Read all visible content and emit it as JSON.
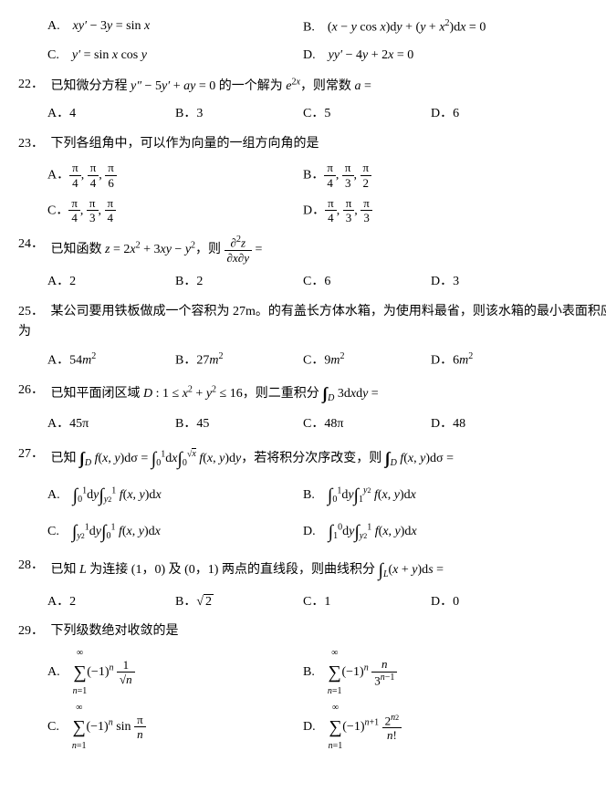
{
  "q21_opts": {
    "A": "A.　<span class='math'>xy′</span> − 3<span class='math'>y</span> = sin <span class='math'>x</span>",
    "B": "B.　(<span class='math'>x</span> − <span class='math'>y</span> cos <span class='math'>x</span>)d<span class='math'>y</span> + (<span class='math'>y</span> + <span class='math'>x</span><span class='sup'>2</span>)d<span class='math'>x</span> = 0",
    "C": "C.　<span class='math'>y′</span> = sin <span class='math'>x</span> cos <span class='math'>y</span>",
    "D": "D.　<span class='math'>yy′</span> − 4<span class='math'>y</span> + 2<span class='math'>x</span> = 0"
  },
  "q22": {
    "num": "22．",
    "text": "已知微分方程 <span class='math'>y″</span> − 5<span class='math'>y′</span> + <span class='math'>ay</span> = 0 的一个解为 <span class='math'>e</span><span class='sup'>2<span class='math'>x</span></span>，则常数 <span class='math'>a</span> =",
    "A": "A．4",
    "B": "B．3",
    "C": "C．5",
    "D": "D．6"
  },
  "q23": {
    "num": "23．",
    "text": "下列各组角中，可以作为向量的一组方向角的是",
    "A": "A．<span class='frac'><span class='num'>π</span><span class='den'>4</span></span>, <span class='frac'><span class='num'>π</span><span class='den'>4</span></span>, <span class='frac'><span class='num'>π</span><span class='den'>6</span></span>",
    "B": "B．<span class='frac'><span class='num'>π</span><span class='den'>4</span></span>, <span class='frac'><span class='num'>π</span><span class='den'>3</span></span>, <span class='frac'><span class='num'>π</span><span class='den'>2</span></span>",
    "C": "C．<span class='frac'><span class='num'>π</span><span class='den'>4</span></span>, <span class='frac'><span class='num'>π</span><span class='den'>3</span></span>, <span class='frac'><span class='num'>π</span><span class='den'>4</span></span>",
    "D": "D．<span class='frac'><span class='num'>π</span><span class='den'>4</span></span>, <span class='frac'><span class='num'>π</span><span class='den'>3</span></span>, <span class='frac'><span class='num'>π</span><span class='den'>3</span></span>"
  },
  "q24": {
    "num": "24．",
    "text": "已知函数 <span class='math'>z</span> = 2<span class='math'>x</span><span class='sup'>2</span> + 3<span class='math'>xy</span> − <span class='math'>y</span><span class='sup'>2</span>，则 <span class='frac'><span class='num'>∂<span class='sup'>2</span><span class='math'>z</span></span><span class='den'>∂<span class='math'>x</span>∂<span class='math'>y</span></span></span> =",
    "A": "A．2",
    "B": "B．2",
    "C": "C．6",
    "D": "D．3"
  },
  "q25": {
    "num": "25．",
    "text": "某公司要用铁板做成一个容积为 27m。的有盖长方体水箱，为使用料最省，则该水箱的最小表面积应为",
    "A": "A．54<span class='math'>m</span><span class='sup'>2</span>",
    "B": "B．27<span class='math'>m</span><span class='sup'>2</span>",
    "C": "C．9<span class='math'>m</span><span class='sup'>2</span>",
    "D": "D．6<span class='math'>m</span><span class='sup'>2</span>"
  },
  "q26": {
    "num": "26．",
    "text": "已知平面闭区域 <span class='math'>D</span> : 1 ≤ <span class='math'>x</span><span class='sup'>2</span> + <span class='math'>y</span><span class='sup'>2</span> ≤ 16，则二重积分 <span class='iint'>∫∫</span><span class='sub'><span class='math'>D</span></span> 3d<span class='math'>x</span>d<span class='math'>y</span> =",
    "A": "A．45π",
    "B": "B．45",
    "C": "C．48π",
    "D": "D．48"
  },
  "q27": {
    "num": "27．",
    "text": "已知 <span class='iint'>∫∫</span><span class='sub'><span class='math'>D</span></span> <span class='math'>f</span>(<span class='math'>x</span>, <span class='math'>y</span>)dσ = <span class='int'>∫</span><span class='sub'>0</span><span class='sup'>1</span>d<span class='math'>x</span><span class='int'>∫</span><span class='sub'>0</span><span class='sup'>√<span class='math' style='border-top:1px solid #000'>x</span></span> <span class='math'>f</span>(<span class='math'>x</span>, <span class='math'>y</span>)d<span class='math'>y</span>，若将积分次序改变，则 <span class='iint'>∫∫</span><span class='sub'><span class='math'>D</span></span> <span class='math'>f</span>(<span class='math'>x</span>, <span class='math'>y</span>)dσ =",
    "A": "A.　<span class='int'>∫</span><span class='sub'>0</span><span class='sup'>1</span>d<span class='math'>y</span><span class='int'>∫</span><span class='sub'><span class='math'>y</span><span style='font-size:8px'>2</span></span><span class='sup'>1</span> <span class='math'>f</span>(<span class='math'>x</span>, <span class='math'>y</span>)d<span class='math'>x</span>",
    "B": "B.　<span class='int'>∫</span><span class='sub'>0</span><span class='sup'>1</span>d<span class='math'>y</span><span class='int'>∫</span><span class='sub'>1</span><span class='sup'><span class='math'>y</span><span style='font-size:8px'>2</span></span> <span class='math'>f</span>(<span class='math'>x</span>, <span class='math'>y</span>)d<span class='math'>x</span>",
    "C": "C.　<span class='int'>∫</span><span class='sub'><span class='math'>y</span><span style='font-size:8px'>2</span></span><span class='sup'>1</span>d<span class='math'>y</span><span class='int'>∫</span><span class='sub'>0</span><span class='sup'>1</span> <span class='math'>f</span>(<span class='math'>x</span>, <span class='math'>y</span>)d<span class='math'>x</span>",
    "D": "D.　<span class='int'>∫</span><span class='sub'>1</span><span class='sup'>0</span>d<span class='math'>y</span><span class='int'>∫</span><span class='sub'><span class='math'>y</span><span style='font-size:8px'>2</span></span><span class='sup'>1</span> <span class='math'>f</span>(<span class='math'>x</span>, <span class='math'>y</span>)d<span class='math'>x</span>"
  },
  "q28": {
    "num": "28．",
    "text": "已知 <span class='math'>L</span> 为连接 (1，0) 及 (0，1) 两点的直线段，则曲线积分 <span class='int'>∫</span><span class='sub'><span class='math'>L</span></span>(<span class='math'>x</span> + <span class='math'>y</span>)d<span class='math'>s</span> =",
    "A": "A．2",
    "B": "B．√<span class='sqrt'>2</span>",
    "C": "C．1",
    "D": "D．0"
  },
  "q29": {
    "num": "29．",
    "text": "下列级数绝对收敛的是",
    "A": "A.　<span class='sumwrap'><span class='sumtop'>∞</span><span class='sum'>∑</span><span class='sumbot'><span class='math'>n</span>=1</span></span>(−1)<span class='sup'><span class='math'>n</span></span> <span class='frac'><span class='num'>1</span><span class='den'>√<span class='math' style='border-top:1px solid #000'>n</span></span></span>",
    "B": "B.　<span class='sumwrap'><span class='sumtop'>∞</span><span class='sum'>∑</span><span class='sumbot'><span class='math'>n</span>=1</span></span>(−1)<span class='sup'><span class='math'>n</span></span> <span class='frac'><span class='num'><span class='math'>n</span></span><span class='den'>3<span class='sup'><span class='math'>n</span>−1</span></span></span>",
    "C": "C.　<span class='sumwrap'><span class='sumtop'>∞</span><span class='sum'>∑</span><span class='sumbot'><span class='math'>n</span>=1</span></span>(−1)<span class='sup'><span class='math'>n</span></span> sin <span class='frac'><span class='num'>π</span><span class='den'><span class='math'>n</span></span></span>",
    "D": "D.　<span class='sumwrap'><span class='sumtop'>∞</span><span class='sum'>∑</span><span class='sumbot'><span class='math'>n</span>=1</span></span>(−1)<span class='sup'><span class='math'>n</span>+1</span> <span class='frac'><span class='num'>2<span class='sup'><span class='math'>n</span><span style='font-size:8px'>2</span></span></span><span class='den'><span class='math'>n</span>!</span></span>"
  }
}
